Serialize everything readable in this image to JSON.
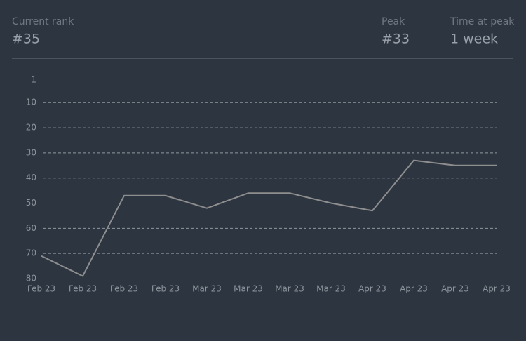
{
  "header": {
    "current_rank_label": "Current rank",
    "current_rank": "#35",
    "peak_label": "Peak",
    "peak": "#33",
    "time_at_peak_label": "Time at peak",
    "time_at_peak": "1 week"
  },
  "chart_data": {
    "type": "line",
    "categories": [
      "Feb 23",
      "Feb 23",
      "Feb 23",
      "Feb 23",
      "Mar 23",
      "Mar 23",
      "Mar 23",
      "Mar 23",
      "Apr 23",
      "Apr 23",
      "Apr 23",
      "Apr 23"
    ],
    "values": [
      71,
      79,
      47,
      47,
      52,
      46,
      46,
      50,
      53,
      33,
      35,
      35
    ],
    "color": "#8e8e8e",
    "ylim": [
      1,
      80
    ],
    "yticks": [
      1,
      10,
      20,
      30,
      40,
      50,
      60,
      70,
      80
    ],
    "invert_y": true,
    "grid": true
  }
}
